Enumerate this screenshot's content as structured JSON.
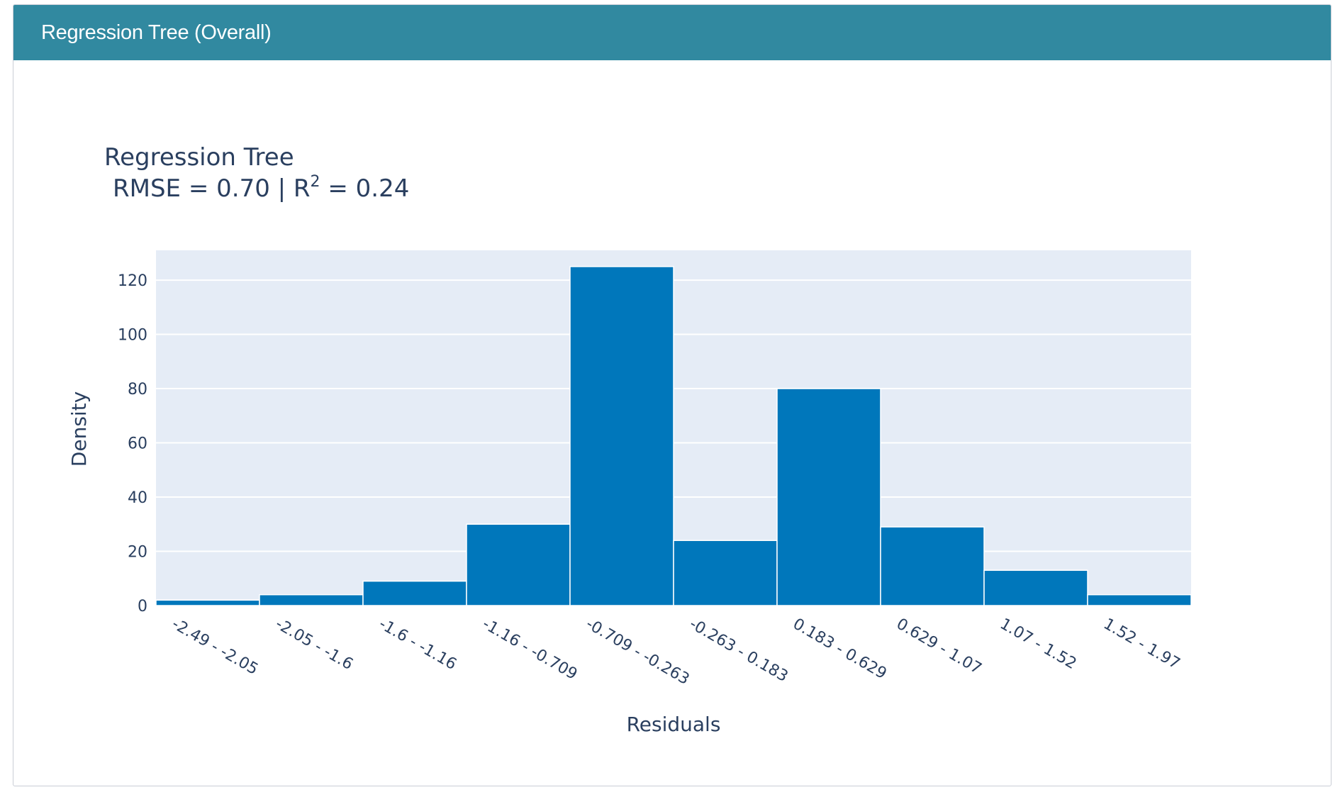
{
  "panel": {
    "title": "Regression Tree (Overall)"
  },
  "chart_data": {
    "type": "bar",
    "title_line1": "Regression Tree",
    "title_line2_prefix": "RMSE = 0.70 | R",
    "title_line2_sup": "2",
    "title_line2_suffix": " = 0.24",
    "xlabel": "Residuals",
    "ylabel": "Density",
    "ylim": [
      0,
      131
    ],
    "yticks": [
      0,
      20,
      40,
      60,
      80,
      100,
      120
    ],
    "categories": [
      "-2.49 - -2.05",
      "-2.05 - -1.6",
      "-1.6 - -1.16",
      "-1.16 - -0.709",
      "-0.709 - -0.263",
      "-0.263 - 0.183",
      "0.183 - 0.629",
      "0.629 - 1.07",
      "1.07 - 1.52",
      "1.52 - 1.97"
    ],
    "values": [
      2,
      4,
      9,
      30,
      125,
      24,
      80,
      29,
      13,
      4
    ],
    "bar_color": "#0077bb",
    "plot_bg": "#e5ecf6",
    "grid": true
  }
}
